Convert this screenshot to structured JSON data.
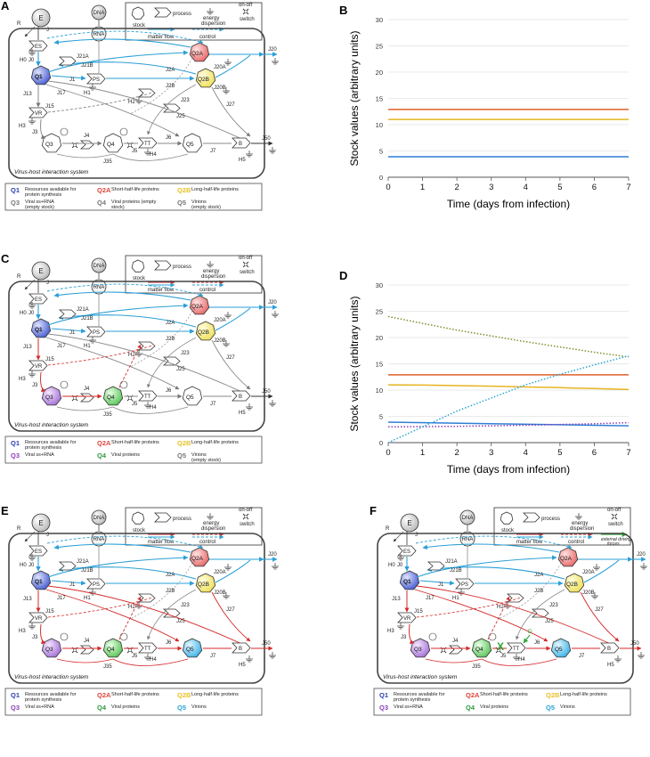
{
  "panels": [
    {
      "id": "A",
      "letter": "A",
      "system_label": "Virus-host interaction system",
      "top_legend": {
        "stock": "stock",
        "process": "process",
        "energy": "energy dispersion",
        "switch": "on-off switch",
        "matter_flow": "matter flow",
        "control": "control",
        "external": ""
      },
      "nodes": {
        "E": "E",
        "DNA": "DNA",
        "RNA": "RNA",
        "R": "R",
        "J": "J",
        "ES": "ES",
        "PS": "PS",
        "VR": "VR",
        "TT": "TT",
        "B": "B",
        "Q1": "Q1",
        "Q2A": "Q2A",
        "Q2B": "Q2B",
        "Q3": "Q3",
        "Q4": "Q4",
        "Q5": "Q5"
      },
      "flows": {
        "J0": "J0",
        "J1": "J1",
        "J21A": "J21A",
        "J21B": "J21B",
        "J2A": "J2A",
        "J2B": "J2B",
        "J20A": "J20A",
        "J20B": "J20B",
        "J20": "J20",
        "J3": "J3",
        "J4": "J4",
        "J5": "J5",
        "J6": "J6",
        "J7": "J7",
        "J13": "J13",
        "J15": "J15",
        "J17": "J17",
        "J23": "J23",
        "J25": "J25",
        "J27": "J27",
        "J35": "J35",
        "J50": "J50",
        "H0": "H0",
        "H1": "H1",
        "H2": "H2",
        "H3": "H3",
        "H4": "H4",
        "H5": "H5"
      },
      "legend": [
        {
          "q": "Q1",
          "text": "Resources available for protein synthesis",
          "color": "#2d3fb0"
        },
        {
          "q": "Q2A",
          "text": "Short-half-life proteins",
          "color": "#e0443a"
        },
        {
          "q": "Q2B",
          "text": "Long-half-life proteins",
          "color": "#e6c229"
        },
        {
          "q": "Q3",
          "text": "Viral ss+RNA (empty stock)",
          "color": "#777777"
        },
        {
          "q": "Q4",
          "text": "Viral proteins (empty stock)",
          "color": "#777777"
        },
        {
          "q": "Q5",
          "text": "Virions (empty stock)",
          "color": "#777777"
        }
      ]
    },
    {
      "id": "C",
      "letter": "C",
      "system_label": "Virus-host interaction system",
      "top_legend": {
        "stock": "stock",
        "process": "process",
        "energy": "energy dispersion",
        "switch": "on-off switch",
        "matter_flow": "matter flow",
        "control": "control",
        "external": ""
      },
      "nodes": {
        "E": "E",
        "DNA": "DNA",
        "RNA": "RNA",
        "R": "R",
        "J": "J",
        "ES": "ES",
        "PS": "PS",
        "VR": "VR",
        "TT": "TT",
        "B": "B",
        "Q1": "Q1",
        "Q2A": "Q2A",
        "Q2B": "Q2B",
        "Q3": "Q3",
        "Q4": "Q4",
        "Q5": "Q5"
      },
      "flows": {
        "J0": "J0",
        "J1": "J1",
        "J21A": "J21A",
        "J21B": "J21B",
        "J2A": "J2A",
        "J2B": "J2B",
        "J20A": "J20A",
        "J20B": "J20B",
        "J20": "J20",
        "J3": "J3",
        "J4": "J4",
        "J5": "J5",
        "J6": "J6",
        "J7": "J7",
        "J13": "J13",
        "J15": "J15",
        "J17": "J17",
        "J23": "J23",
        "J25": "J25",
        "J27": "J27",
        "J35": "J35",
        "J50": "J50",
        "H0": "H0",
        "H1": "H1",
        "H2": "H2",
        "H3": "H3",
        "H4": "H4",
        "H5": "H5"
      },
      "legend": [
        {
          "q": "Q1",
          "text": "Resources available for protein synthesis",
          "color": "#2d3fb0"
        },
        {
          "q": "Q2A",
          "text": "Short-half-life proteins",
          "color": "#e0443a"
        },
        {
          "q": "Q2B",
          "text": "Long-half-life proteins",
          "color": "#e6c229"
        },
        {
          "q": "Q3",
          "text": "Viral ss+RNA",
          "color": "#8a3fb5"
        },
        {
          "q": "Q4",
          "text": "Viral proteins",
          "color": "#2e9a3e"
        },
        {
          "q": "Q5",
          "text": "Virions (empty stock)",
          "color": "#777777"
        }
      ]
    },
    {
      "id": "E",
      "letter": "E",
      "system_label": "Virus-host interaction system",
      "top_legend": {
        "stock": "stock",
        "process": "process",
        "energy": "energy dispersion",
        "switch": "on-off switch",
        "matter_flow": "matter flow",
        "control": "control",
        "external": ""
      },
      "nodes": {
        "E": "E",
        "DNA": "DNA",
        "RNA": "RNA",
        "R": "R",
        "J": "J",
        "ES": "ES",
        "PS": "PS",
        "VR": "VR",
        "TT": "TT",
        "B": "B",
        "Q1": "Q1",
        "Q2A": "Q2A",
        "Q2B": "Q2B",
        "Q3": "Q3",
        "Q4": "Q4",
        "Q5": "Q5"
      },
      "flows": {
        "J0": "J0",
        "J1": "J1",
        "J21A": "J21A",
        "J21B": "J21B",
        "J2A": "J2A",
        "J2B": "J2B",
        "J20A": "J20A",
        "J20B": "J20B",
        "J20": "J20",
        "J3": "J3",
        "J4": "J4",
        "J5": "J5",
        "J6": "J6",
        "J7": "J7",
        "J13": "J13",
        "J15": "J15",
        "J17": "J17",
        "J23": "J23",
        "J25": "J25",
        "J27": "J27",
        "J35": "J35",
        "J50": "J50",
        "H0": "H0",
        "H1": "H1",
        "H2": "H2",
        "H3": "H3",
        "H4": "H4",
        "H5": "H5"
      },
      "legend": [
        {
          "q": "Q1",
          "text": "Resources available for protein synthesis",
          "color": "#2d3fb0"
        },
        {
          "q": "Q2A",
          "text": "Short-half-life proteins",
          "color": "#e0443a"
        },
        {
          "q": "Q2B",
          "text": "Long-half-life proteins",
          "color": "#e6c229"
        },
        {
          "q": "Q3",
          "text": "Viral ss+RNA",
          "color": "#8a3fb5"
        },
        {
          "q": "Q4",
          "text": "Viral proteins",
          "color": "#2e9a3e"
        },
        {
          "q": "Q5",
          "text": "Virions",
          "color": "#2aa6d6"
        }
      ]
    },
    {
      "id": "F",
      "letter": "F",
      "system_label": "Virus-host interaction system",
      "top_legend": {
        "stock": "stock",
        "process": "process",
        "energy": "energy dispersion",
        "switch": "on-off switch",
        "matter_flow": "matter flow",
        "control": "control",
        "external": "external driving forces"
      },
      "nodes": {
        "E": "E",
        "DNA": "DNA",
        "RNA": "RNA",
        "R": "R",
        "J": "J",
        "ES": "ES",
        "PS": "PS",
        "VR": "VR",
        "TT": "TT",
        "B": "B",
        "Q1": "Q1",
        "Q2A": "Q2A",
        "Q2B": "Q2B",
        "Q3": "Q3",
        "Q4": "Q4",
        "Q5": "Q5",
        "D": "D",
        "X": "X"
      },
      "flows": {
        "J0": "J0",
        "J1": "J1",
        "J21A": "J21A",
        "J21B": "J21B",
        "J2A": "J2A",
        "J2B": "J2B",
        "J20A": "J20A",
        "J20B": "J20B",
        "J20": "J20",
        "J3": "J3",
        "J4": "J4",
        "J5": "J5",
        "J6": "J6",
        "J7": "J7",
        "J13": "J13",
        "J15": "J15",
        "J17": "J17",
        "J23": "J23",
        "J25": "J25",
        "J27": "J27",
        "J35": "J35",
        "J50": "J50",
        "H0": "H0",
        "H1": "H1",
        "H2": "H2",
        "H3": "H3",
        "H4": "H4",
        "H5": "H5"
      },
      "legend": [
        {
          "q": "Q1",
          "text": "Resources available for protein synthesis",
          "color": "#2d3fb0"
        },
        {
          "q": "Q2A",
          "text": "Short-half-life proteins",
          "color": "#e0443a"
        },
        {
          "q": "Q2B",
          "text": "Long-half-life proteins",
          "color": "#e6c229"
        },
        {
          "q": "Q3",
          "text": "Viral ss+RNA",
          "color": "#8a3fb5"
        },
        {
          "q": "Q4",
          "text": "Viral proteins",
          "color": "#2e9a3e"
        },
        {
          "q": "Q5",
          "text": "Virions",
          "color": "#2aa6d6"
        }
      ]
    }
  ],
  "chart_data": [
    {
      "type": "line",
      "panel": "B",
      "xlabel": "Time (days from infection)",
      "ylabel": "Stock values (arbitrary units)",
      "xlim": [
        0,
        7
      ],
      "ylim": [
        0,
        30
      ],
      "xticks": [
        0,
        1,
        2,
        3,
        4,
        5,
        6,
        7
      ],
      "yticks": [
        0,
        5,
        10,
        15,
        20,
        25,
        30
      ],
      "grid": true,
      "series": [
        {
          "color": "#e0602a",
          "style": "solid",
          "x": [
            0,
            7
          ],
          "y": [
            12.9,
            12.9
          ]
        },
        {
          "color": "#e6b422",
          "style": "solid",
          "x": [
            0,
            7
          ],
          "y": [
            11.0,
            11.0
          ]
        },
        {
          "color": "#2f7fd6",
          "style": "solid",
          "x": [
            0,
            7
          ],
          "y": [
            3.9,
            3.9
          ]
        }
      ]
    },
    {
      "type": "line",
      "panel": "D",
      "xlabel": "Time (days from infection)",
      "ylabel": "Stock values (arbitrary units)",
      "xlim": [
        0,
        7
      ],
      "ylim": [
        0,
        30
      ],
      "xticks": [
        0,
        1,
        2,
        3,
        4,
        5,
        6,
        7
      ],
      "yticks": [
        0,
        5,
        10,
        15,
        20,
        25,
        30
      ],
      "grid": true,
      "series": [
        {
          "color": "#e0602a",
          "style": "solid",
          "x": [
            0,
            7
          ],
          "y": [
            12.9,
            12.9
          ]
        },
        {
          "color": "#e6b422",
          "style": "solid",
          "x": [
            0,
            1,
            2,
            3,
            4,
            5,
            6,
            7
          ],
          "y": [
            11.0,
            10.95,
            10.85,
            10.75,
            10.6,
            10.45,
            10.3,
            10.1
          ]
        },
        {
          "color": "#2f7fd6",
          "style": "solid",
          "x": [
            0,
            7
          ],
          "y": [
            3.9,
            3.2
          ]
        },
        {
          "color": "#8a3fb5",
          "style": "dotted",
          "x": [
            0,
            1,
            2,
            3,
            4,
            5,
            6,
            7
          ],
          "y": [
            3.0,
            3.05,
            3.1,
            3.2,
            3.3,
            3.45,
            3.6,
            3.8
          ]
        },
        {
          "color": "#7d8f2a",
          "style": "dotted",
          "x": [
            0,
            1,
            2,
            3,
            4,
            5,
            6,
            7
          ],
          "y": [
            24.0,
            22.7,
            21.4,
            20.3,
            19.2,
            18.2,
            17.2,
            16.3
          ]
        },
        {
          "color": "#2aa6d6",
          "style": "dotted",
          "x": [
            0,
            1,
            2,
            3,
            4,
            5,
            6,
            7
          ],
          "y": [
            0.0,
            3.0,
            6.0,
            8.5,
            11.0,
            13.0,
            14.8,
            16.5
          ]
        }
      ]
    }
  ],
  "colors": {
    "blue": "#2a9fd6",
    "red": "#d42a2a",
    "q1": "#6a7fe0",
    "q2a": "#f08a8a",
    "q2b": "#f6ee84",
    "q3": "#c9a3ea",
    "q4": "#8fdc8c",
    "q5": "#7fd0f0",
    "green": "#2fa83a"
  }
}
